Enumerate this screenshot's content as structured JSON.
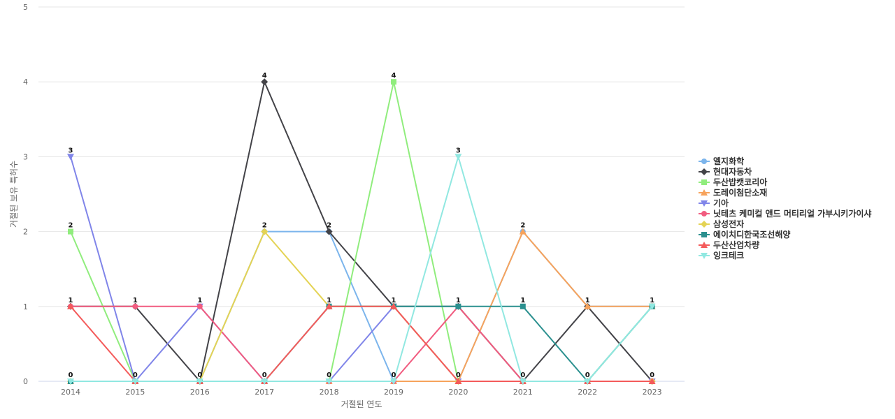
{
  "chart_data": {
    "type": "line",
    "xlabel": "거절된 연도",
    "ylabel": "거절된 보유 특허수",
    "ylim": [
      0,
      5
    ],
    "yticks": [
      0,
      1,
      2,
      3,
      4,
      5
    ],
    "grid": true,
    "legend_position": "right",
    "x": [
      "2014",
      "2015",
      "2016",
      "2017",
      "2018",
      "2019",
      "2020",
      "2021",
      "2022",
      "2023"
    ],
    "series": [
      {
        "name": "엘지화학",
        "color": "#7cb5ec",
        "marker": "circle",
        "values": [
          0,
          0,
          0,
          2,
          2,
          0,
          0,
          2,
          1,
          1
        ]
      },
      {
        "name": "현대자동차",
        "color": "#434348",
        "marker": "diamond",
        "values": [
          1,
          1,
          0,
          4,
          2,
          1,
          1,
          0,
          1,
          0
        ]
      },
      {
        "name": "두산밥캣코리아",
        "color": "#90ed7d",
        "marker": "square",
        "values": [
          2,
          0,
          0,
          0,
          0,
          4,
          0,
          0,
          0,
          1
        ]
      },
      {
        "name": "도레이첨단소재",
        "color": "#f7a35c",
        "marker": "triangle",
        "values": [
          0,
          0,
          0,
          0,
          0,
          0,
          0,
          2,
          1,
          1
        ]
      },
      {
        "name": "기아",
        "color": "#8085e9",
        "marker": "triangle-down",
        "values": [
          3,
          0,
          1,
          0,
          0,
          1,
          0,
          0,
          0,
          0
        ]
      },
      {
        "name": "닛테츠 케미컬 앤드 머티리얼 가부시키가이샤",
        "color": "#f15c80",
        "marker": "circle",
        "values": [
          1,
          1,
          1,
          0,
          0,
          0,
          1,
          0,
          0,
          0
        ]
      },
      {
        "name": "삼성전자",
        "color": "#e4d354",
        "marker": "diamond",
        "values": [
          0,
          0,
          0,
          2,
          1,
          1,
          0,
          0,
          0,
          0
        ]
      },
      {
        "name": "에이치디한국조선해양",
        "color": "#2b908f",
        "marker": "square",
        "values": [
          0,
          0,
          0,
          0,
          1,
          1,
          1,
          1,
          0,
          1
        ]
      },
      {
        "name": "두산산업차량",
        "color": "#f45b5b",
        "marker": "triangle",
        "values": [
          1,
          0,
          0,
          0,
          1,
          1,
          0,
          0,
          0,
          0
        ]
      },
      {
        "name": "잉크테크",
        "color": "#91e8e1",
        "marker": "triangle-down",
        "values": [
          0,
          0,
          0,
          0,
          0,
          0,
          3,
          0,
          0,
          1
        ]
      }
    ],
    "data_labels": [
      {
        "x": "2014",
        "label": "3",
        "series": "기아"
      },
      {
        "x": "2014",
        "label": "2",
        "series": "두산밥캣코리아"
      },
      {
        "x": "2014",
        "label": "1",
        "series": "현대자동차"
      },
      {
        "x": "2014",
        "label": "0",
        "series": "에이치디한국조선해양"
      },
      {
        "x": "2015",
        "label": "1",
        "series": "현대자동차"
      },
      {
        "x": "2015",
        "label": "0",
        "series": "엘지화학"
      },
      {
        "x": "2016",
        "label": "1",
        "series": "기아"
      },
      {
        "x": "2016",
        "label": "0",
        "series": "현대자동차"
      },
      {
        "x": "2017",
        "label": "4",
        "series": "현대자동차"
      },
      {
        "x": "2017",
        "label": "2",
        "series": "엘지화학"
      },
      {
        "x": "2017",
        "label": "0",
        "series": "두산밥캣코리아"
      },
      {
        "x": "2018",
        "label": "2",
        "series": "현대자동차"
      },
      {
        "x": "2018",
        "label": "1",
        "series": "두산산업차량"
      },
      {
        "x": "2018",
        "label": "0",
        "series": "두산밥캣코리아"
      },
      {
        "x": "2019",
        "label": "4",
        "series": "두산밥캣코리아"
      },
      {
        "x": "2019",
        "label": "1",
        "series": "현대자동차"
      },
      {
        "x": "2019",
        "label": "0",
        "series": "엘지화학"
      },
      {
        "x": "2020",
        "label": "3",
        "series": "잉크테크"
      },
      {
        "x": "2020",
        "label": "1",
        "series": "현대자동차"
      },
      {
        "x": "2020",
        "label": "0",
        "series": "엘지화학"
      },
      {
        "x": "2021",
        "label": "2",
        "series": "엘지화학"
      },
      {
        "x": "2021",
        "label": "1",
        "series": "에이치디한국조선해양"
      },
      {
        "x": "2021",
        "label": "0",
        "series": "현대자동차"
      },
      {
        "x": "2022",
        "label": "1",
        "series": "현대자동차"
      },
      {
        "x": "2022",
        "label": "0",
        "series": "두산밥캣코리아"
      },
      {
        "x": "2023",
        "label": "1",
        "series": "엘지화학"
      },
      {
        "x": "2023",
        "label": "0",
        "series": "현대자동차"
      }
    ]
  }
}
